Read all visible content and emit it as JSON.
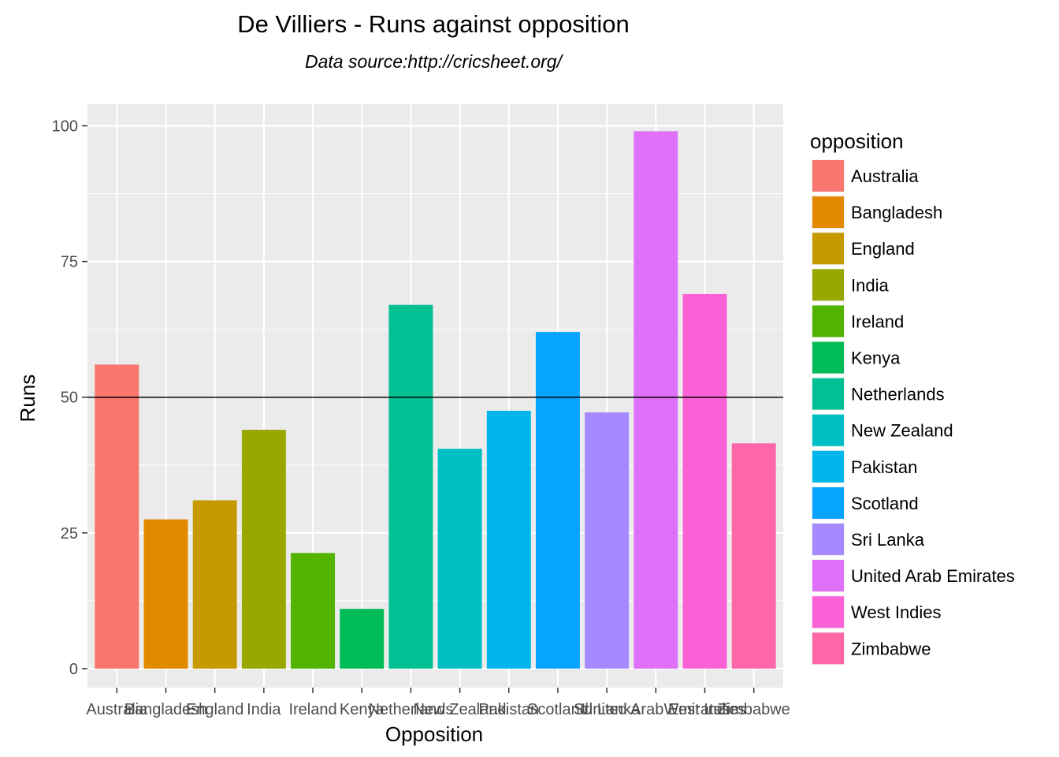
{
  "chart_data": {
    "type": "bar",
    "title": "De Villiers - Runs against opposition",
    "subtitle": "Data source:http://cricsheet.org/",
    "xlabel": "Opposition",
    "ylabel": "Runs",
    "categories": [
      "Australia",
      "Bangladesh",
      "England",
      "India",
      "Ireland",
      "Kenya",
      "Netherlands",
      "New Zealand",
      "Pakistan",
      "Scotland",
      "Sri Lanka",
      "United Arab Emirates",
      "West Indies",
      "Zimbabwe"
    ],
    "values": [
      56,
      27.5,
      31,
      44,
      21.3,
      11,
      67,
      40.5,
      47.5,
      62,
      47.2,
      99,
      69,
      41.5
    ],
    "colors": [
      "#F8766D",
      "#E38900",
      "#C49A00",
      "#99A800",
      "#53B400",
      "#00BC56",
      "#00C094",
      "#00BFC4",
      "#00B6EB",
      "#06A4FF",
      "#A58AFF",
      "#DF70F8",
      "#FB61D7",
      "#FF66A8"
    ],
    "ylim": [
      -3.5,
      104
    ],
    "yticks": [
      0,
      25,
      50,
      75,
      100
    ],
    "hline": 50,
    "grid": true,
    "legend_title": "opposition",
    "legend_position": "right",
    "panel_background": "#EBEBEB"
  }
}
